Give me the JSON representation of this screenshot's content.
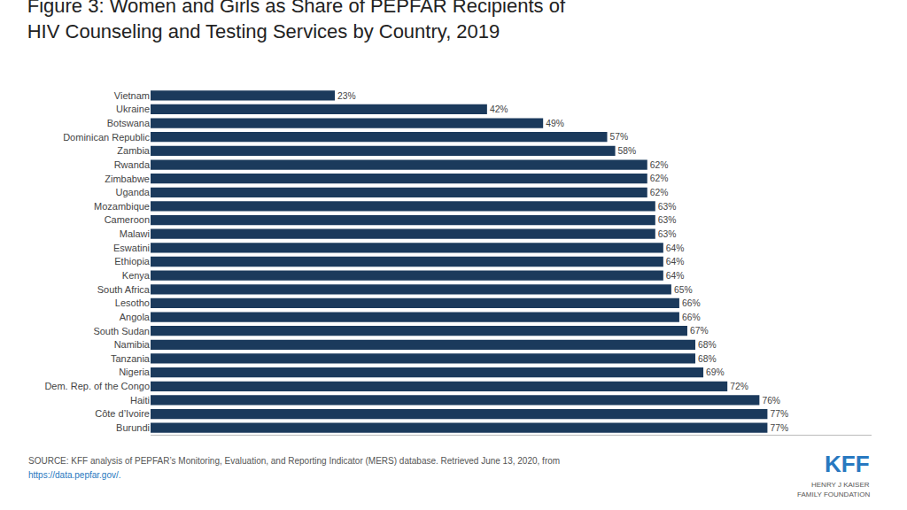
{
  "chart_data": {
    "type": "bar",
    "orientation": "horizontal",
    "title": "Figure 3: Women and Girls as Share of PEPFAR Recipients of\nHIV Counseling and Testing Services by Country, 2019",
    "categories": [
      "Vietnam",
      "Ukraine",
      "Botswana",
      "Dominican Republic",
      "Zambia",
      "Rwanda",
      "Zimbabwe",
      "Uganda",
      "Mozambique",
      "Cameroon",
      "Malawi",
      "Eswatini",
      "Ethiopia",
      "Kenya",
      "South Africa",
      "Lesotho",
      "Angola",
      "South Sudan",
      "Namibia",
      "Tanzania",
      "Nigeria",
      "Dem. Rep. of the Congo",
      "Haiti",
      "Côte d’Ivoire",
      "Burundi"
    ],
    "values": [
      23,
      42,
      49,
      57,
      58,
      62,
      62,
      62,
      63,
      63,
      63,
      64,
      64,
      64,
      65,
      66,
      66,
      67,
      68,
      68,
      69,
      72,
      76,
      77,
      77
    ],
    "value_labels": [
      "23%",
      "42%",
      "49%",
      "57%",
      "58%",
      "62%",
      "62%",
      "62%",
      "63%",
      "63%",
      "63%",
      "64%",
      "64%",
      "64%",
      "65%",
      "66%",
      "66%",
      "67%",
      "68%",
      "68%",
      "69%",
      "72%",
      "76%",
      "77%",
      "77%"
    ],
    "color": "#1b3a5c",
    "xlim": [
      0,
      90
    ],
    "grid": false,
    "data_labels": true,
    "tick_labels": "y",
    "annotations": [
      {
        "text": "SOURCE: KFF analysis of PEPFAR’s Monitoring, Evaluation, and Reporting Indicator (MERS) database. Retrieved June 13, 2020, from"
      },
      {
        "text": "https://data.pepfar.gov/.",
        "color": "#2878c0"
      },
      {
        "text": "KFF",
        "color": "#2878c0"
      },
      {
        "text": "HENRY J KAISER"
      },
      {
        "text": "FAMILY FOUNDATION"
      }
    ]
  }
}
